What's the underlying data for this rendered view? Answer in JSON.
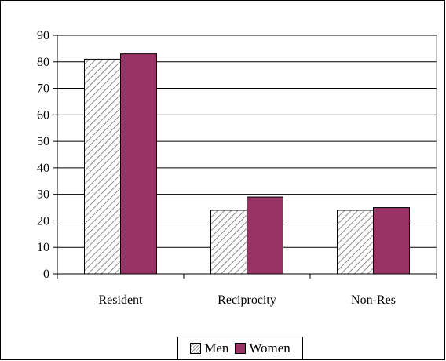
{
  "chart_data": {
    "type": "bar",
    "categories": [
      "Resident",
      "Reciprocity",
      "Non-Res"
    ],
    "series": [
      {
        "name": "Men",
        "values": [
          81,
          24,
          24
        ],
        "color": "#ffffff",
        "pattern": "diagonal-hatch"
      },
      {
        "name": "Women",
        "values": [
          83,
          29,
          25
        ],
        "color": "#993366"
      }
    ],
    "ylim": [
      0,
      90
    ],
    "yticks": [
      0,
      10,
      20,
      30,
      40,
      50,
      60,
      70,
      80,
      90
    ],
    "grid": true,
    "legend_position": "bottom"
  }
}
